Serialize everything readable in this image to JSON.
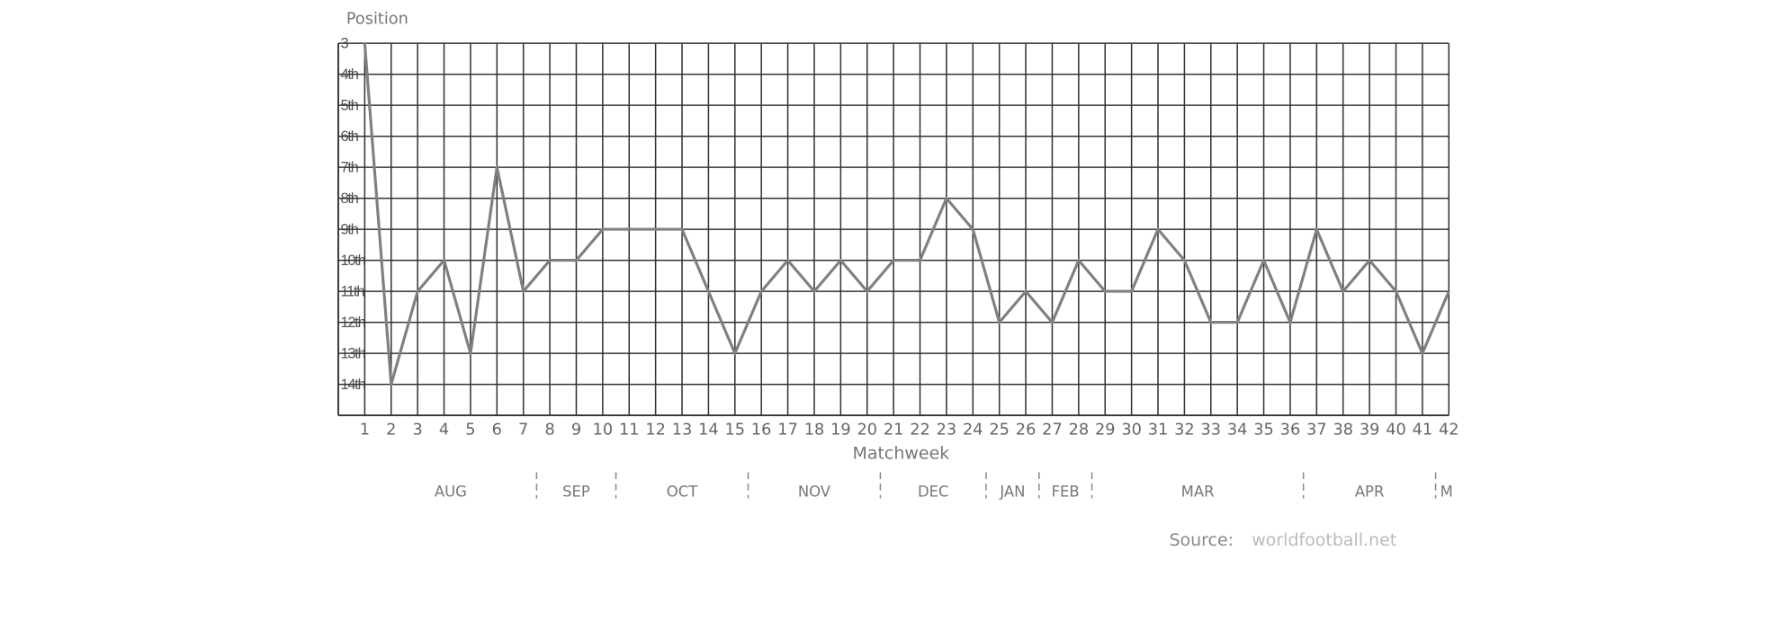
{
  "chart_data": {
    "type": "line",
    "ylabel": "Position",
    "xlabel": "Matchweek",
    "x": [
      1,
      2,
      3,
      4,
      5,
      6,
      7,
      8,
      9,
      10,
      11,
      12,
      13,
      14,
      15,
      16,
      17,
      18,
      19,
      20,
      21,
      22,
      23,
      24,
      25,
      26,
      27,
      28,
      29,
      30,
      31,
      32,
      33,
      34,
      35,
      36,
      37,
      38,
      39,
      40,
      41,
      42
    ],
    "series": [
      {
        "color": "#808080",
        "values": [
          3,
          14,
          11,
          10,
          13,
          7,
          11,
          10,
          10,
          9,
          9,
          9,
          9,
          11,
          13,
          11,
          10,
          11,
          10,
          11,
          10,
          10,
          8,
          9,
          12,
          11,
          12,
          10,
          11,
          11,
          9,
          10,
          12,
          12,
          10,
          12,
          9,
          11,
          10,
          11,
          13,
          11
        ]
      }
    ],
    "xlim": [
      0,
      42
    ],
    "xticks": [
      1,
      2,
      3,
      4,
      5,
      6,
      7,
      8,
      9,
      10,
      11,
      12,
      13,
      14,
      15,
      16,
      17,
      18,
      19,
      20,
      21,
      22,
      23,
      24,
      25,
      26,
      27,
      28,
      29,
      30,
      31,
      32,
      33,
      34,
      35,
      36,
      37,
      38,
      39,
      40,
      41,
      42
    ],
    "ylim": [
      15,
      3
    ],
    "y_inverted": true,
    "yticks": [
      3,
      {
        "value": 4,
        "label": "4th"
      },
      {
        "value": 5,
        "label": "5th"
      },
      {
        "value": 6,
        "label": "6th"
      },
      {
        "value": 7,
        "label": "7th"
      },
      {
        "value": 8,
        "label": "8th"
      },
      {
        "value": 9,
        "label": "9th"
      },
      {
        "value": 10,
        "label": "10th"
      },
      {
        "value": 11,
        "label": "11th"
      },
      {
        "value": 12,
        "label": "12th"
      },
      {
        "value": 13,
        "label": "13th"
      },
      {
        "value": 14,
        "label": "14th"
      }
    ],
    "grid": true,
    "months": [
      "AUG",
      "SEP",
      "OCT",
      "NOV",
      "DEC",
      "JAN",
      "FEB",
      "MAR",
      "APR",
      "M"
    ],
    "month_breaks": [
      7.5,
      10.5,
      15.5,
      20.5,
      24.5,
      26.5,
      28.5,
      36.5,
      41.5
    ],
    "source_label": "Source:",
    "source": "worldfootball.net"
  }
}
